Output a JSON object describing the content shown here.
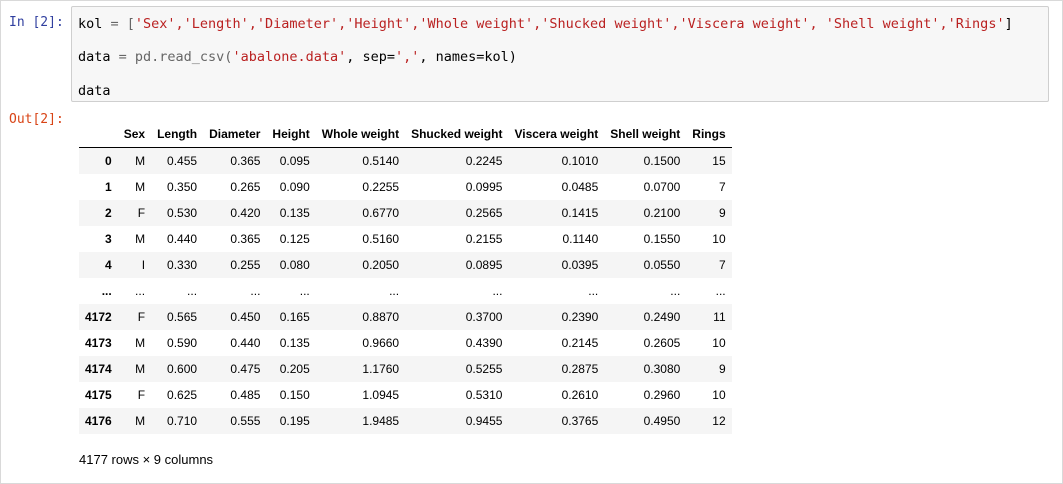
{
  "cell": {
    "in_prompt": "In [2]:",
    "out_prompt": "Out[2]:",
    "code": {
      "line1_var": "kol",
      "line1_op": " = [",
      "line1_items": "'Sex','Length','Diameter','Height','Whole weight','Shucked weight','Viscera weight', 'Shell weight','Rings'",
      "line1_close": "]",
      "line2_var": "data",
      "line2_op": " = pd.read_csv(",
      "line2_file": "'abalone.data'",
      "line2_mid": ", sep=",
      "line2_sep": "','",
      "line2_end": ", names=kol)",
      "line3": "data"
    }
  },
  "dataframe": {
    "columns": [
      "",
      "Sex",
      "Length",
      "Diameter",
      "Height",
      "Whole weight",
      "Shucked weight",
      "Viscera weight",
      "Shell weight",
      "Rings"
    ],
    "rows": [
      [
        "0",
        "M",
        "0.455",
        "0.365",
        "0.095",
        "0.5140",
        "0.2245",
        "0.1010",
        "0.1500",
        "15"
      ],
      [
        "1",
        "M",
        "0.350",
        "0.265",
        "0.090",
        "0.2255",
        "0.0995",
        "0.0485",
        "0.0700",
        "7"
      ],
      [
        "2",
        "F",
        "0.530",
        "0.420",
        "0.135",
        "0.6770",
        "0.2565",
        "0.1415",
        "0.2100",
        "9"
      ],
      [
        "3",
        "M",
        "0.440",
        "0.365",
        "0.125",
        "0.5160",
        "0.2155",
        "0.1140",
        "0.1550",
        "10"
      ],
      [
        "4",
        "I",
        "0.330",
        "0.255",
        "0.080",
        "0.2050",
        "0.0895",
        "0.0395",
        "0.0550",
        "7"
      ],
      [
        "...",
        "...",
        "...",
        "...",
        "...",
        "...",
        "...",
        "...",
        "...",
        "..."
      ],
      [
        "4172",
        "F",
        "0.565",
        "0.450",
        "0.165",
        "0.8870",
        "0.3700",
        "0.2390",
        "0.2490",
        "11"
      ],
      [
        "4173",
        "M",
        "0.590",
        "0.440",
        "0.135",
        "0.9660",
        "0.4390",
        "0.2145",
        "0.2605",
        "10"
      ],
      [
        "4174",
        "M",
        "0.600",
        "0.475",
        "0.205",
        "1.1760",
        "0.5255",
        "0.2875",
        "0.3080",
        "9"
      ],
      [
        "4175",
        "F",
        "0.625",
        "0.485",
        "0.150",
        "1.0945",
        "0.5310",
        "0.2610",
        "0.2960",
        "10"
      ],
      [
        "4176",
        "M",
        "0.710",
        "0.555",
        "0.195",
        "1.9485",
        "0.9455",
        "0.3765",
        "0.4950",
        "12"
      ]
    ],
    "shape_note": "4177 rows × 9 columns"
  }
}
